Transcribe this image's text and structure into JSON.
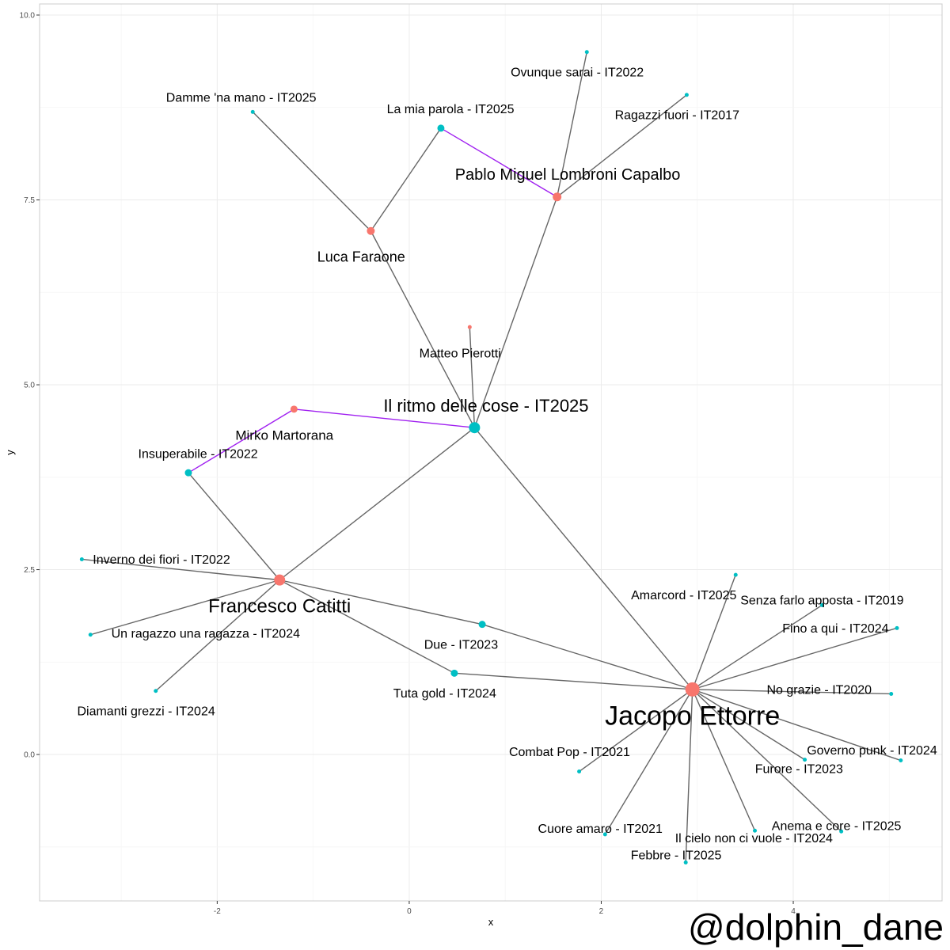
{
  "axes": {
    "xlabel": "x",
    "ylabel": "y",
    "xlim": [
      -3.85,
      5.55
    ],
    "ylim": [
      -1.98,
      10.15
    ],
    "x_ticks": [
      -2,
      0,
      2,
      4
    ],
    "x_tick_labels": [
      "-2",
      "0",
      "2",
      "4"
    ],
    "y_ticks": [
      0.0,
      2.5,
      5.0,
      7.5,
      10.0
    ],
    "y_tick_labels": [
      "0.0",
      "2.5",
      "5.0",
      "7.5",
      "10.0"
    ],
    "grid": true
  },
  "colors": {
    "artist": "#F8766D",
    "song": "#00BFC4",
    "edge": "#666666",
    "highlight_edge": "#A020F0",
    "grid_major": "#EBEBEB",
    "grid_minor": "#F5F5F5",
    "panel_border": "#CCCCCC"
  },
  "watermark": "@dolphin_dane",
  "chart_data": {
    "type": "network",
    "nodes": [
      {
        "id": "jacopo",
        "label": "Jacopo Ettorre",
        "group": "artist",
        "x": 2.95,
        "y": 0.88,
        "size": 9,
        "font": 34,
        "lx": 0,
        "ly": 0.35
      },
      {
        "id": "francesco",
        "label": "Francesco Catitti",
        "group": "artist",
        "x": -1.35,
        "y": 2.36,
        "size": 7,
        "font": 24,
        "lx": 0,
        "ly": 0.35
      },
      {
        "id": "pablo",
        "label": "Pablo Miguel Lombroni Capalbo",
        "group": "artist",
        "x": 1.54,
        "y": 7.54,
        "size": 5.5,
        "font": 20,
        "lx": 0.11,
        "ly": -0.31
      },
      {
        "id": "luca",
        "label": "Luca Faraone",
        "group": "artist",
        "x": -0.4,
        "y": 7.08,
        "size": 5,
        "font": 18,
        "lx": -0.1,
        "ly": 0.35
      },
      {
        "id": "mirko",
        "label": "Mirko Martorana",
        "group": "artist",
        "x": -1.2,
        "y": 4.67,
        "size": 4.5,
        "font": 17,
        "lx": -0.1,
        "ly": 0.35
      },
      {
        "id": "matteo",
        "label": "Matteo Pierotti",
        "group": "artist",
        "x": 0.63,
        "y": 5.78,
        "size": 2.5,
        "font": 16,
        "lx": -0.1,
        "ly": 0.35
      },
      {
        "id": "ritmo",
        "label": "Il ritmo delle cose - IT2025",
        "group": "song",
        "x": 0.68,
        "y": 4.42,
        "size": 7,
        "font": 22,
        "lx": 0.12,
        "ly": -0.3
      },
      {
        "id": "insuperabile",
        "label": "Insuperabile - IT2022",
        "group": "song",
        "x": -2.3,
        "y": 3.81,
        "size": 4.5,
        "font": 16,
        "lx": 0.1,
        "ly": -0.26
      },
      {
        "id": "parola",
        "label": "La mia parola - IT2025",
        "group": "song",
        "x": 0.33,
        "y": 8.47,
        "size": 4.5,
        "font": 16,
        "lx": 0.1,
        "ly": -0.26
      },
      {
        "id": "due",
        "label": "Due - IT2023",
        "group": "song",
        "x": 0.76,
        "y": 1.76,
        "size": 4.5,
        "font": 16,
        "lx": -0.22,
        "ly": 0.27
      },
      {
        "id": "tuta",
        "label": "Tuta gold - IT2024",
        "group": "song",
        "x": 0.47,
        "y": 1.1,
        "size": 4.5,
        "font": 16,
        "lx": -0.1,
        "ly": 0.27
      },
      {
        "id": "damme",
        "label": "Damme 'na mano - IT2025",
        "group": "song",
        "x": -1.63,
        "y": 8.69,
        "size": 2.5,
        "font": 16,
        "lx": -0.12,
        "ly": -0.2
      },
      {
        "id": "ovunque",
        "label": "Ovunque sarai - IT2022",
        "group": "song",
        "x": 1.85,
        "y": 9.5,
        "size": 2.5,
        "font": 16,
        "lx": -0.1,
        "ly": 0.27
      },
      {
        "id": "ragazzi",
        "label": "Ragazzi fuori - IT2017",
        "group": "song",
        "x": 2.89,
        "y": 8.92,
        "size": 2.5,
        "font": 16,
        "lx": -0.1,
        "ly": 0.27
      },
      {
        "id": "inverno",
        "label": "Inverno dei fiori - IT2022",
        "group": "song",
        "x": -3.41,
        "y": 2.64,
        "size": 2.5,
        "font": 16,
        "lx": 0.83,
        "ly": 0.0
      },
      {
        "id": "ragazzo",
        "label": "Un ragazzo una ragazza - IT2024",
        "group": "song",
        "x": -3.32,
        "y": 1.62,
        "size": 2.5,
        "font": 16,
        "lx": 1.2,
        "ly": -0.02
      },
      {
        "id": "diamanti",
        "label": "Diamanti grezzi - IT2024",
        "group": "song",
        "x": -2.64,
        "y": 0.86,
        "size": 2.5,
        "font": 16,
        "lx": -0.1,
        "ly": 0.27
      },
      {
        "id": "amarcord",
        "label": "Amarcord - IT2025",
        "group": "song",
        "x": 3.4,
        "y": 2.43,
        "size": 2.5,
        "font": 16,
        "lx": -0.54,
        "ly": 0.27
      },
      {
        "id": "senza",
        "label": "Senza farlo apposta - IT2019",
        "group": "song",
        "x": 4.3,
        "y": 2.02,
        "size": 2.5,
        "font": 16,
        "lx": 0.0,
        "ly": -0.07
      },
      {
        "id": "fino",
        "label": "Fino a qui - IT2024",
        "group": "song",
        "x": 5.08,
        "y": 1.71,
        "size": 2.5,
        "font": 16,
        "lx": -0.64,
        "ly": 0.0
      },
      {
        "id": "nograzie",
        "label": "No grazie - IT2020",
        "group": "song",
        "x": 5.02,
        "y": 0.82,
        "size": 2.5,
        "font": 16,
        "lx": -0.75,
        "ly": -0.06
      },
      {
        "id": "furore",
        "label": "Furore - IT2023",
        "group": "song",
        "x": 4.12,
        "y": -0.07,
        "size": 2.5,
        "font": 16,
        "lx": -0.06,
        "ly": 0.12
      },
      {
        "id": "governo",
        "label": "Governo punk - IT2024",
        "group": "song",
        "x": 5.12,
        "y": -0.08,
        "size": 2.5,
        "font": 16,
        "lx": -0.3,
        "ly": -0.14
      },
      {
        "id": "combat",
        "label": "Combat Pop - IT2021",
        "group": "song",
        "x": 1.77,
        "y": -0.23,
        "size": 2.5,
        "font": 16,
        "lx": -0.1,
        "ly": -0.27
      },
      {
        "id": "cielo",
        "label": "Il cielo non ci vuole - IT2024",
        "group": "song",
        "x": 3.6,
        "y": -1.03,
        "size": 2.5,
        "font": 16,
        "lx": -0.01,
        "ly": 0.1
      },
      {
        "id": "anema",
        "label": "Anema e core - IT2025",
        "group": "song",
        "x": 4.5,
        "y": -1.04,
        "size": 2.5,
        "font": 16,
        "lx": -0.05,
        "ly": -0.08
      },
      {
        "id": "cuore",
        "label": "Cuore amaro - IT2021",
        "group": "song",
        "x": 2.04,
        "y": -1.08,
        "size": 2.5,
        "font": 16,
        "lx": -0.05,
        "ly": -0.08
      },
      {
        "id": "febbre",
        "label": "Febbre - IT2025",
        "group": "song",
        "x": 2.88,
        "y": -1.46,
        "size": 2.5,
        "font": 16,
        "lx": -0.1,
        "ly": -0.1
      }
    ],
    "edges": [
      {
        "from": "jacopo",
        "to": "ritmo",
        "type": "normal"
      },
      {
        "from": "francesco",
        "to": "ritmo",
        "type": "normal"
      },
      {
        "from": "pablo",
        "to": "ritmo",
        "type": "normal"
      },
      {
        "from": "luca",
        "to": "ritmo",
        "type": "normal"
      },
      {
        "from": "matteo",
        "to": "ritmo",
        "type": "normal"
      },
      {
        "from": "mirko",
        "to": "ritmo",
        "type": "highlight"
      },
      {
        "from": "mirko",
        "to": "insuperabile",
        "type": "highlight"
      },
      {
        "from": "pablo",
        "to": "parola",
        "type": "highlight"
      },
      {
        "from": "luca",
        "to": "parola",
        "type": "normal"
      },
      {
        "from": "luca",
        "to": "damme",
        "type": "normal"
      },
      {
        "from": "pablo",
        "to": "ovunque",
        "type": "normal"
      },
      {
        "from": "pablo",
        "to": "ragazzi",
        "type": "normal"
      },
      {
        "from": "francesco",
        "to": "insuperabile",
        "type": "normal"
      },
      {
        "from": "francesco",
        "to": "inverno",
        "type": "normal"
      },
      {
        "from": "francesco",
        "to": "ragazzo",
        "type": "normal"
      },
      {
        "from": "francesco",
        "to": "diamanti",
        "type": "normal"
      },
      {
        "from": "francesco",
        "to": "due",
        "type": "normal"
      },
      {
        "from": "francesco",
        "to": "tuta",
        "type": "normal"
      },
      {
        "from": "jacopo",
        "to": "due",
        "type": "normal"
      },
      {
        "from": "jacopo",
        "to": "tuta",
        "type": "normal"
      },
      {
        "from": "jacopo",
        "to": "amarcord",
        "type": "normal"
      },
      {
        "from": "jacopo",
        "to": "senza",
        "type": "normal"
      },
      {
        "from": "jacopo",
        "to": "fino",
        "type": "normal"
      },
      {
        "from": "jacopo",
        "to": "nograzie",
        "type": "normal"
      },
      {
        "from": "jacopo",
        "to": "furore",
        "type": "normal"
      },
      {
        "from": "jacopo",
        "to": "governo",
        "type": "normal"
      },
      {
        "from": "jacopo",
        "to": "combat",
        "type": "normal"
      },
      {
        "from": "jacopo",
        "to": "cielo",
        "type": "normal"
      },
      {
        "from": "jacopo",
        "to": "anema",
        "type": "normal"
      },
      {
        "from": "jacopo",
        "to": "cuore",
        "type": "normal"
      },
      {
        "from": "jacopo",
        "to": "febbre",
        "type": "normal"
      }
    ]
  }
}
